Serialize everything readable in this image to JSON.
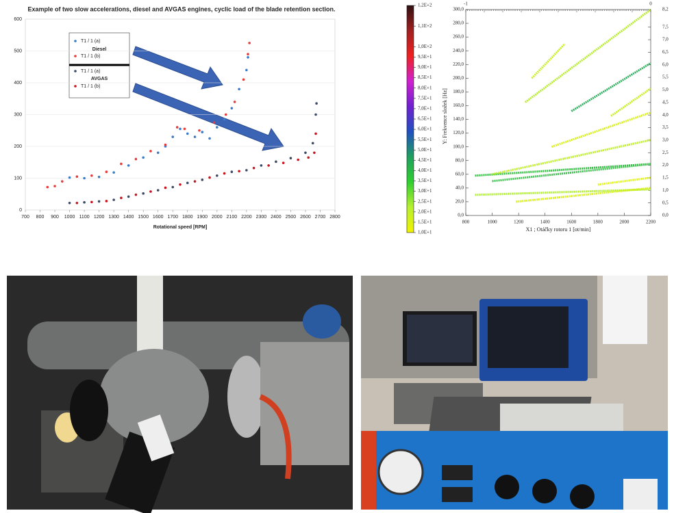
{
  "chart_data": [
    {
      "type": "scatter",
      "title": "Example of two slow accelerations, diesel and AVGAS engines, cyclic load of the blade retention section.",
      "xlabel": "Rotational speed   [RPM]",
      "xlim": [
        700,
        2800
      ],
      "xticks": [
        700,
        800,
        900,
        1000,
        1100,
        1200,
        1300,
        1400,
        1500,
        1600,
        1700,
        1800,
        1900,
        2000,
        2100,
        2200,
        2300,
        2400,
        2500,
        2600,
        2700,
        2800
      ],
      "ylim": [
        0,
        600
      ],
      "yticks": [
        0,
        100,
        200,
        300,
        400,
        500,
        600
      ],
      "grid": true,
      "legend_groups": [
        "Diesel",
        "AVGAS"
      ],
      "series": [
        {
          "name": "T1 / 1 (a)",
          "color": "#3a7cc8",
          "x": [
            1000,
            1100,
            1200,
            1300,
            1400,
            1500,
            1600,
            1650,
            1700,
            1750,
            1800,
            1850,
            1900,
            1950,
            2000,
            2050,
            2100,
            2150,
            2200,
            2210
          ],
          "values": [
            102,
            100,
            104,
            118,
            140,
            165,
            180,
            200,
            230,
            255,
            240,
            230,
            245,
            225,
            260,
            285,
            320,
            380,
            440,
            480
          ]
        },
        {
          "name": "T1 / 1 (b)",
          "color": "#e83a3a",
          "x": [
            850,
            900,
            950,
            1050,
            1150,
            1250,
            1350,
            1450,
            1550,
            1650,
            1730,
            1780,
            1880,
            1980,
            2060,
            2120,
            2180,
            2210,
            2220
          ],
          "values": [
            72,
            75,
            90,
            105,
            108,
            120,
            145,
            160,
            185,
            205,
            260,
            255,
            250,
            275,
            300,
            340,
            410,
            490,
            525
          ]
        },
        {
          "name": "T1 / 1 (a)",
          "color": "#3c4a66",
          "x": [
            1000,
            1100,
            1200,
            1300,
            1400,
            1500,
            1600,
            1700,
            1800,
            1900,
            2000,
            2100,
            2200,
            2300,
            2400,
            2500,
            2600,
            2650,
            2670,
            2675
          ],
          "values": [
            22,
            24,
            27,
            32,
            42,
            52,
            62,
            72,
            85,
            95,
            108,
            120,
            125,
            140,
            152,
            163,
            180,
            210,
            300,
            335
          ]
        },
        {
          "name": "T1 / 1 (b)",
          "color": "#c8141e",
          "x": [
            1050,
            1150,
            1250,
            1350,
            1450,
            1550,
            1650,
            1750,
            1850,
            1950,
            2050,
            2150,
            2250,
            2350,
            2450,
            2550,
            2620,
            2660,
            2670
          ],
          "values": [
            22,
            25,
            28,
            38,
            48,
            58,
            70,
            80,
            90,
            102,
            115,
            122,
            132,
            140,
            148,
            158,
            165,
            180,
            240
          ]
        }
      ]
    },
    {
      "type": "line",
      "xlabel": "X1 ; Otáčky rotoru 1 [ot/min]",
      "ylabel": "Y: Frekvence složek [Hz]",
      "xlim": [
        800,
        2200
      ],
      "xticks": [
        800,
        1000,
        1200,
        1400,
        1600,
        1800,
        2000,
        2200
      ],
      "x2lim": [
        -1,
        0
      ],
      "x2ticks": [
        -1,
        0
      ],
      "ylim": [
        0,
        300
      ],
      "yticks": [
        {
          "value": 0,
          "label": "0,0"
        },
        {
          "value": 20,
          "label": "20,0"
        },
        {
          "value": 40,
          "label": "40,0"
        },
        {
          "value": 60,
          "label": "60,0"
        },
        {
          "value": 80,
          "label": "80,0"
        },
        {
          "value": 100,
          "label": "100,0"
        },
        {
          "value": 120,
          "label": "120,0"
        },
        {
          "value": 140,
          "label": "140,0"
        },
        {
          "value": 160,
          "label": "160,0"
        },
        {
          "value": 180,
          "label": "180,0"
        },
        {
          "value": 200,
          "label": "200,0"
        },
        {
          "value": 220,
          "label": "220,0"
        },
        {
          "value": 240,
          "label": "240,0"
        },
        {
          "value": 260,
          "label": "260,0"
        },
        {
          "value": 280,
          "label": "280,0"
        },
        {
          "value": 300,
          "label": "300,0"
        }
      ],
      "y2lim": [
        0,
        8.2
      ],
      "y2ticks": [
        {
          "value": 0,
          "label": "0,0"
        },
        {
          "value": 0.5,
          "label": "0,5"
        },
        {
          "value": 1,
          "label": "1,0"
        },
        {
          "value": 1.5,
          "label": "1,5"
        },
        {
          "value": 2,
          "label": "2,0"
        },
        {
          "value": 2.5,
          "label": "2,5"
        },
        {
          "value": 3,
          "label": "3,0"
        },
        {
          "value": 3.5,
          "label": "3,5"
        },
        {
          "value": 4,
          "label": "4,0"
        },
        {
          "value": 4.5,
          "label": "4,5"
        },
        {
          "value": 5,
          "label": "5,0"
        },
        {
          "value": 5.5,
          "label": "5,5"
        },
        {
          "value": 6,
          "label": "6,0"
        },
        {
          "value": 6.5,
          "label": "6,5"
        },
        {
          "value": 7,
          "label": "7,0"
        },
        {
          "value": 7.5,
          "label": "7,5"
        },
        {
          "value": 8.2,
          "label": "8,2"
        }
      ],
      "colorbar": {
        "lim": [
          10,
          120
        ],
        "colors": [
          "#f2f200",
          "#b8f030",
          "#30d030",
          "#20a060",
          "#2050c0",
          "#7020d0",
          "#d020d0",
          "#f02020",
          "#a02020",
          "#301010"
        ],
        "ticks": [
          {
            "value": 10,
            "label": "1,0E+1"
          },
          {
            "value": 15,
            "label": "1,5E+1"
          },
          {
            "value": 20,
            "label": "2,0E+1"
          },
          {
            "value": 25,
            "label": "2,5E+1"
          },
          {
            "value": 30,
            "label": "3,0E+1"
          },
          {
            "value": 35,
            "label": "3,5E+1"
          },
          {
            "value": 40,
            "label": "4,0E+1"
          },
          {
            "value": 45,
            "label": "4,5E+1"
          },
          {
            "value": 50,
            "label": "5,0E+1"
          },
          {
            "value": 55,
            "label": "5,5E+1"
          },
          {
            "value": 60,
            "label": "6,0E+1"
          },
          {
            "value": 65,
            "label": "6,5E+1"
          },
          {
            "value": 70,
            "label": "7,0E+1"
          },
          {
            "value": 75,
            "label": "7,5E+1"
          },
          {
            "value": 80,
            "label": "8,0E+1"
          },
          {
            "value": 85,
            "label": "8,5E+1"
          },
          {
            "value": 90,
            "label": "9,0E+1"
          },
          {
            "value": 95,
            "label": "9,5E+1"
          },
          {
            "value": 100,
            "label": "1,0E+2"
          },
          {
            "value": 110,
            "label": "1,1E+2"
          },
          {
            "value": 120,
            "label": "1,2E+2"
          }
        ]
      },
      "series": [
        {
          "color": "#b0ec30",
          "x": [
            870,
            2200
          ],
          "values": [
            30,
            38
          ]
        },
        {
          "color": "#d8f020",
          "x": [
            1180,
            2200
          ],
          "values": [
            20,
            40
          ]
        },
        {
          "color": "#30c040",
          "x": [
            870,
            2200
          ],
          "values": [
            58,
            75
          ]
        },
        {
          "color": "#40c050",
          "x": [
            1000,
            2200
          ],
          "values": [
            50,
            75
          ]
        },
        {
          "color": "#c0ee30",
          "x": [
            1000,
            2200
          ],
          "values": [
            60,
            110
          ]
        },
        {
          "color": "#d8f020",
          "x": [
            1450,
            2200
          ],
          "values": [
            100,
            150
          ]
        },
        {
          "color": "#c8f028",
          "x": [
            1900,
            2200
          ],
          "values": [
            145,
            185
          ]
        },
        {
          "color": "#30b060",
          "x": [
            1600,
            2200
          ],
          "values": [
            152,
            222
          ]
        },
        {
          "color": "#b8ec30",
          "x": [
            1250,
            2200
          ],
          "values": [
            165,
            300
          ]
        },
        {
          "color": "#c8f028",
          "x": [
            1300,
            1550
          ],
          "values": [
            200,
            250
          ]
        },
        {
          "color": "#e0f418",
          "x": [
            1800,
            2200
          ],
          "values": [
            45,
            55
          ]
        }
      ]
    }
  ]
}
